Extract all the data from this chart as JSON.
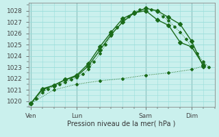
{
  "title": "",
  "xlabel": "Pression niveau de la mer( hPa )",
  "ylabel": "",
  "ylim": [
    1019.5,
    1028.7
  ],
  "yticks": [
    1020,
    1021,
    1022,
    1023,
    1024,
    1025,
    1026,
    1027,
    1028
  ],
  "xtick_labels": [
    "Ven",
    "Lun",
    "Sam",
    "Dim"
  ],
  "xtick_positions": [
    0,
    4,
    10,
    14
  ],
  "bg_color": "#caf0ed",
  "grid_color": "#99ddda",
  "line_color": "#1a6b1a",
  "xlim": [
    -0.2,
    16
  ],
  "line1_x": [
    0,
    0.5,
    1,
    1.5,
    2,
    2.5,
    3,
    3.5,
    4,
    4.5,
    5,
    5.5,
    6,
    6.5,
    7,
    7.5,
    8,
    8.5,
    9,
    9.5,
    10,
    10.5,
    11,
    11.5,
    12,
    12.5,
    13,
    13.5,
    14,
    14.5,
    15,
    15.5
  ],
  "line1_y": [
    1019.8,
    1020.2,
    1020.8,
    1021.1,
    1021.3,
    1021.5,
    1021.7,
    1021.9,
    1022.1,
    1022.4,
    1022.8,
    1023.5,
    1024.2,
    1025.0,
    1025.8,
    1026.5,
    1027.0,
    1027.5,
    1027.9,
    1028.1,
    1028.2,
    1028.1,
    1027.9,
    1027.5,
    1027.1,
    1026.6,
    1026.1,
    1025.5,
    1024.8,
    1024.2,
    1023.5,
    1023.0
  ],
  "line2_x": [
    0,
    1,
    2,
    3,
    4,
    5,
    6,
    7,
    8,
    9,
    10,
    11,
    12,
    13,
    14,
    15
  ],
  "line2_y": [
    1019.8,
    1021.0,
    1021.4,
    1021.9,
    1022.2,
    1023.1,
    1024.5,
    1025.9,
    1027.0,
    1027.8,
    1028.2,
    1028.0,
    1027.4,
    1026.8,
    1025.3,
    1023.1
  ],
  "line3_x": [
    0,
    1,
    2,
    3,
    4,
    5,
    6,
    7,
    8,
    9,
    10,
    11,
    12,
    13,
    14,
    15
  ],
  "line3_y": [
    1019.8,
    1021.1,
    1021.4,
    1021.9,
    1022.3,
    1023.3,
    1024.8,
    1026.1,
    1027.3,
    1027.8,
    1028.0,
    1027.2,
    1026.7,
    1025.2,
    1024.8,
    1023.2
  ],
  "line4_x": [
    0,
    2,
    4,
    6,
    8,
    10,
    12,
    14,
    15
  ],
  "line4_y": [
    1019.8,
    1021.0,
    1021.5,
    1021.8,
    1022.0,
    1022.3,
    1022.5,
    1022.8,
    1023.1
  ],
  "vline_positions": [
    0,
    4,
    10,
    14
  ]
}
